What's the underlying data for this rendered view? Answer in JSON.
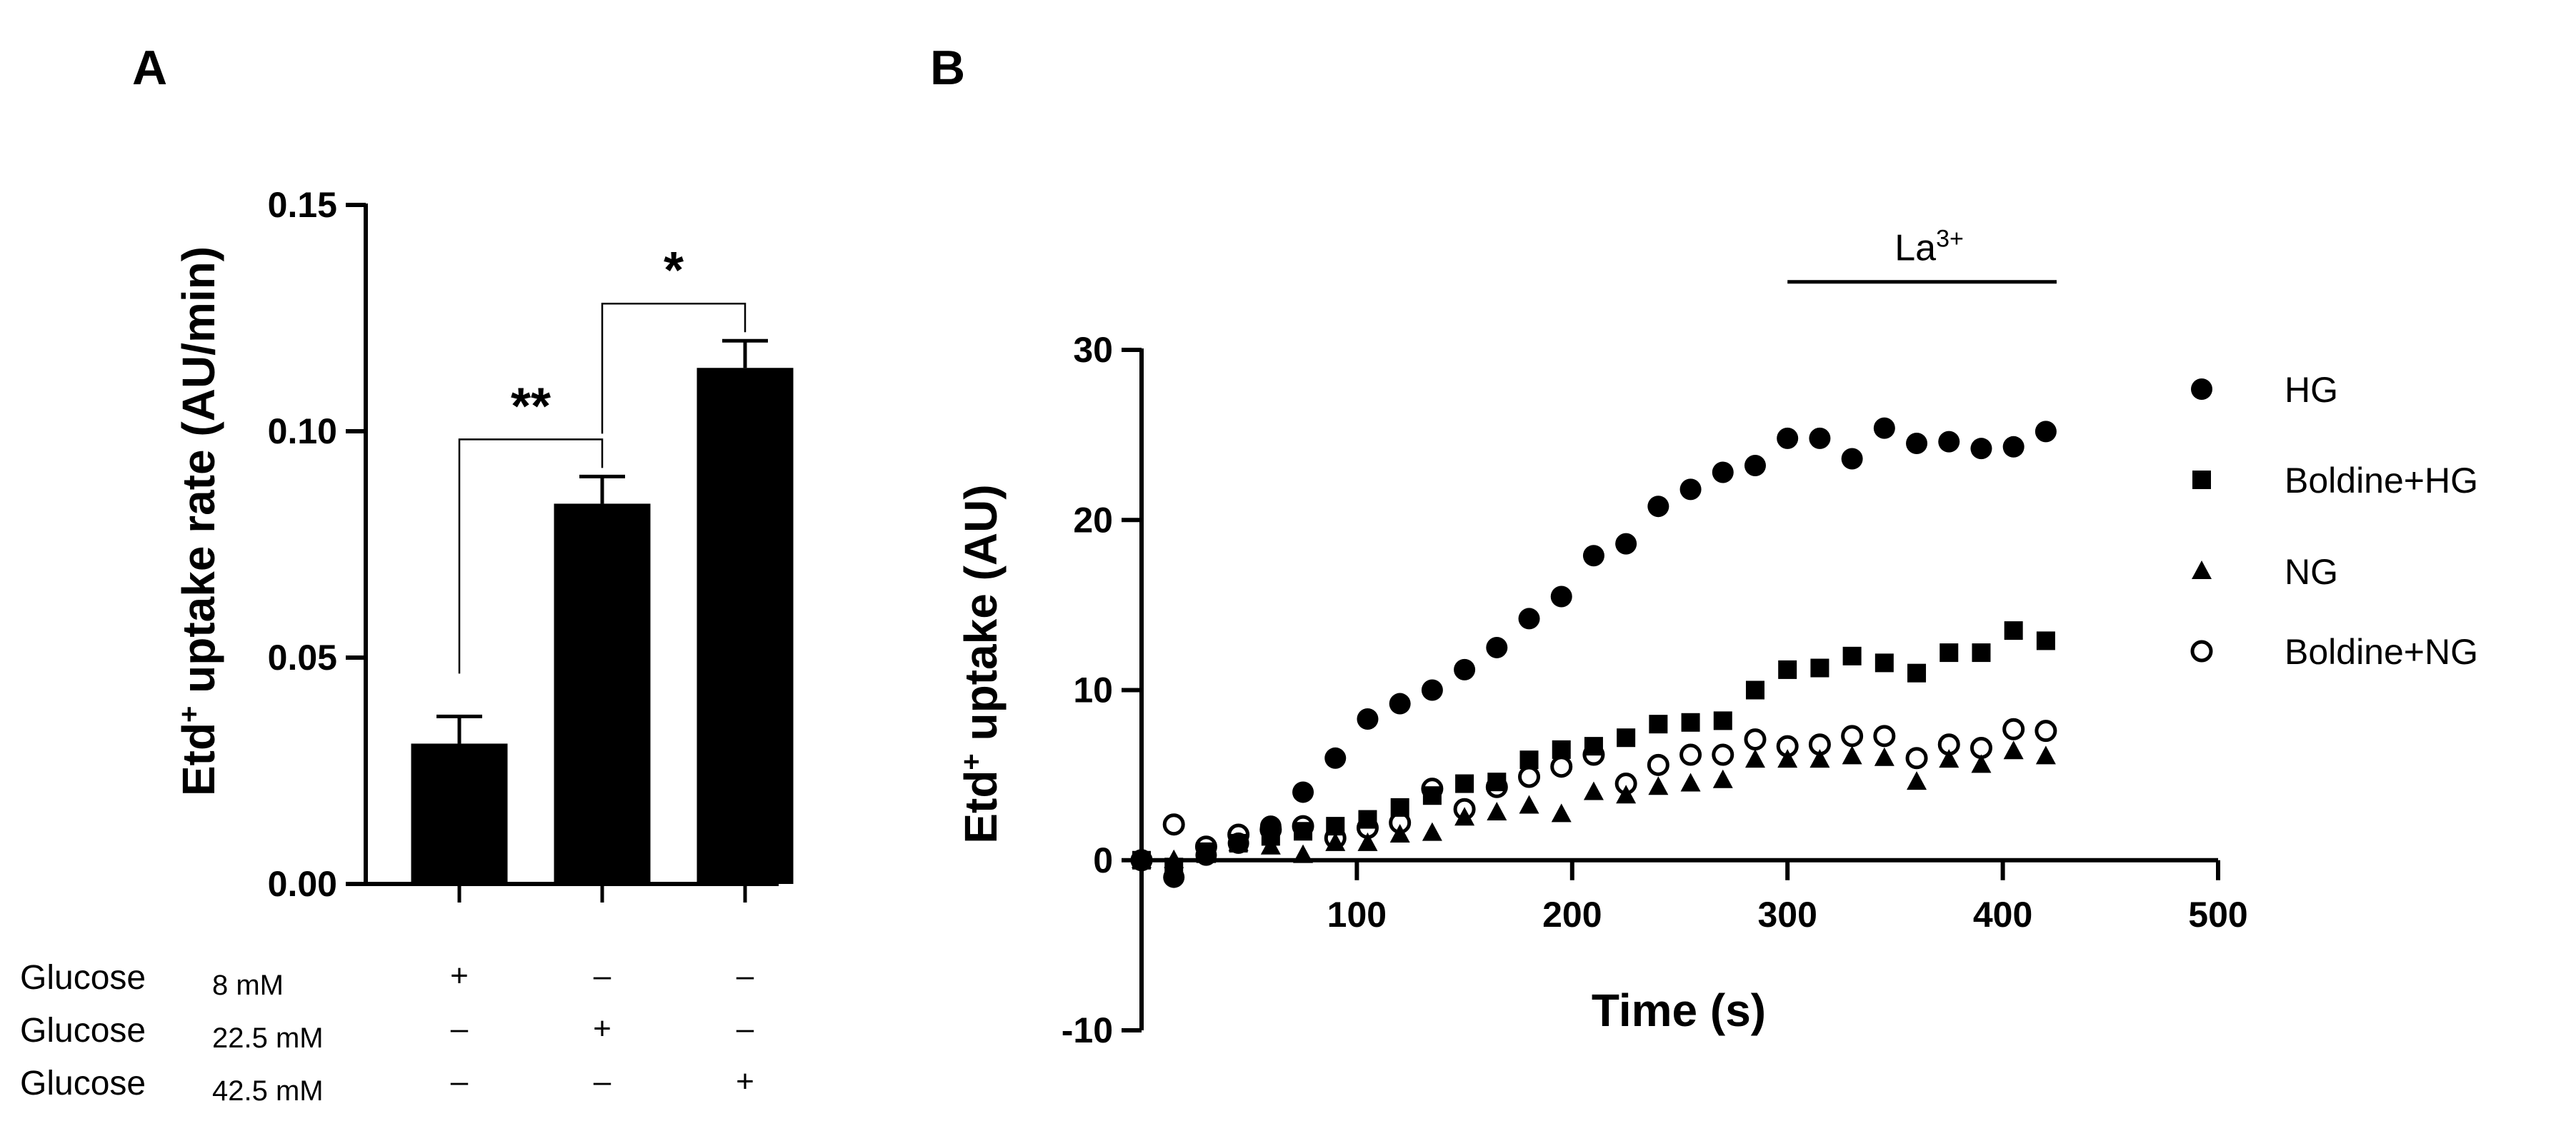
{
  "chart_data": [
    {
      "panel": "A",
      "type": "bar",
      "categories": [
        "8 mM",
        "22.5 mM",
        "42.5 mM"
      ],
      "values": [
        0.031,
        0.084,
        0.114
      ],
      "errors": [
        0.006,
        0.006,
        0.006
      ],
      "ylabel": "Etd",
      "ylabel_sup": "+",
      "ylabel_rest": " uptake rate (AU/min)",
      "ylim": [
        0,
        0.15
      ],
      "yticks": [
        0.0,
        0.05,
        0.1,
        0.15
      ],
      "ytick_labels": [
        "0.00",
        "0.05",
        "0.10",
        "0.15"
      ],
      "color": "#000000",
      "significance": [
        {
          "from": 0,
          "to": 1,
          "label": "**"
        },
        {
          "from": 1,
          "to": 2,
          "label": "*"
        }
      ],
      "conditions": [
        {
          "label": "Glucose",
          "conc": "8 mM",
          "marks": [
            "+",
            "–",
            "–"
          ]
        },
        {
          "label": "Glucose",
          "conc": "22.5 mM",
          "marks": [
            "–",
            "+",
            "–"
          ]
        },
        {
          "label": "Glucose",
          "conc": "42.5 mM",
          "marks": [
            "–",
            "–",
            "+"
          ]
        }
      ]
    },
    {
      "panel": "B",
      "type": "scatter",
      "xlabel": "Time (s)",
      "ylabel": "Etd",
      "ylabel_sup": "+",
      "ylabel_rest": " uptake  (AU)",
      "xlim": [
        0,
        500
      ],
      "ylim": [
        -10,
        30
      ],
      "xticks": [
        100,
        200,
        300,
        400,
        500
      ],
      "xtick_labels": [
        "100",
        "200",
        "300",
        "400",
        "500"
      ],
      "yticks": [
        -10,
        0,
        10,
        20,
        30
      ],
      "ytick_labels": [
        "-10",
        "0",
        "10",
        "20",
        "30"
      ],
      "annotation": {
        "text": "La",
        "sup": "3+",
        "x_start": 300,
        "x_end": 425,
        "y": 34
      },
      "x": [
        0,
        15,
        30,
        45,
        60,
        75,
        90,
        105,
        120,
        135,
        150,
        165,
        180,
        195,
        210,
        225,
        240,
        255,
        270,
        285,
        300,
        315,
        330,
        345,
        360,
        375,
        390,
        405,
        420
      ],
      "series": [
        {
          "name": "HG",
          "marker": "filled-circle",
          "values": [
            0,
            -1,
            0.3,
            1,
            2,
            4,
            6,
            8.3,
            9.2,
            10,
            11.2,
            12.5,
            14.2,
            15.5,
            17.9,
            18.6,
            20.8,
            21.8,
            22.8,
            23.2,
            24.8,
            24.8,
            23.6,
            25.4,
            24.5,
            24.6,
            24.2,
            24.3,
            25.2
          ]
        },
        {
          "name": "Boldine+HG",
          "marker": "filled-square",
          "values": [
            0,
            -0.4,
            0.5,
            1,
            1.4,
            1.7,
            2,
            2.4,
            3.1,
            3.8,
            4.5,
            4.6,
            5.9,
            6.5,
            6.7,
            7.2,
            8,
            8.1,
            8.2,
            10,
            11.2,
            11.3,
            12,
            11.6,
            11,
            12.2,
            12.2,
            13.5,
            12.9
          ]
        },
        {
          "name": "NG",
          "marker": "filled-triangle",
          "values": [
            0,
            0,
            0.3,
            1,
            0.8,
            0.3,
            1,
            1,
            1.5,
            1.6,
            2.5,
            2.8,
            3.2,
            2.7,
            4,
            3.8,
            4.3,
            4.5,
            4.7,
            5.9,
            5.9,
            5.9,
            6.1,
            6,
            4.6,
            5.9,
            5.6,
            6.4,
            6.1
          ]
        },
        {
          "name": "Boldine+NG",
          "marker": "open-circle",
          "values": [
            0,
            2.1,
            0.8,
            1.5,
            1.8,
            2,
            1.3,
            1.9,
            2.2,
            4.2,
            3,
            4.3,
            4.9,
            5.5,
            6.2,
            4.5,
            5.6,
            6.2,
            6.2,
            7.1,
            6.7,
            6.8,
            7.3,
            7.3,
            6,
            6.8,
            6.6,
            7.7,
            7.6
          ]
        }
      ],
      "legend_position": "right"
    }
  ]
}
